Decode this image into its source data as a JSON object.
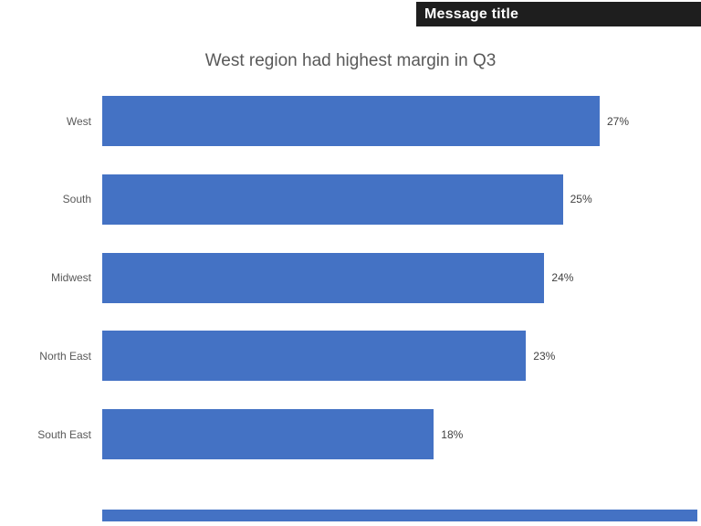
{
  "slide": {
    "message_title": "Message title",
    "header_bg": "#1e1e1e",
    "header_text_color": "#ffffff",
    "accent_color": "#4472C4"
  },
  "chart_data": {
    "type": "bar",
    "orientation": "horizontal",
    "title": "West region had highest margin in Q3",
    "categories": [
      "West",
      "South",
      "Midwest",
      "North East",
      "South East"
    ],
    "values": [
      27,
      25,
      24,
      23,
      18
    ],
    "value_labels": [
      "27%",
      "25%",
      "24%",
      "23%",
      "18%"
    ],
    "xlabel": "",
    "ylabel": "",
    "xlim": [
      0,
      27
    ],
    "bar_color": "#4472C4",
    "grid": false,
    "legend": false,
    "value_labels_position": "outside-end"
  }
}
